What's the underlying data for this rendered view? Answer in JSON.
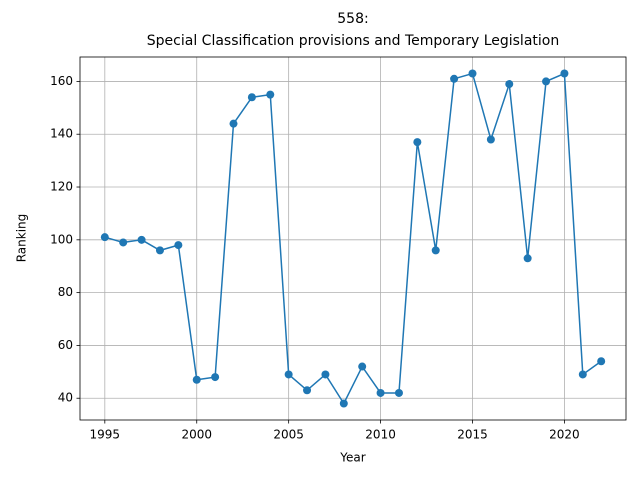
{
  "chart_data": {
    "type": "line",
    "title": [
      "558:",
      "Special Classification provisions and Temporary Legislation"
    ],
    "x_label": "Year",
    "y_label": "Ranking",
    "x": [
      1995,
      1996,
      1997,
      1998,
      1999,
      2000,
      2001,
      2002,
      2003,
      2004,
      2005,
      2006,
      2007,
      2008,
      2009,
      2010,
      2011,
      2012,
      2013,
      2014,
      2015,
      2016,
      2017,
      2018,
      2019,
      2020,
      2021,
      2022
    ],
    "values": [
      101,
      99,
      100,
      96,
      98,
      47,
      48,
      144,
      154,
      155,
      49,
      43,
      49,
      38,
      52,
      42,
      42,
      137,
      96,
      161,
      163,
      138,
      159,
      93,
      160,
      163,
      49,
      54
    ],
    "color": "#1f77b4",
    "xlim": [
      1993.65,
      2023.35
    ],
    "xticks": [
      1995,
      2000,
      2005,
      2010,
      2015,
      2020
    ],
    "ylim": [
      31.75,
      169.25
    ],
    "yticks": [
      40,
      60,
      80,
      100,
      120,
      140,
      160
    ],
    "grid": true
  }
}
